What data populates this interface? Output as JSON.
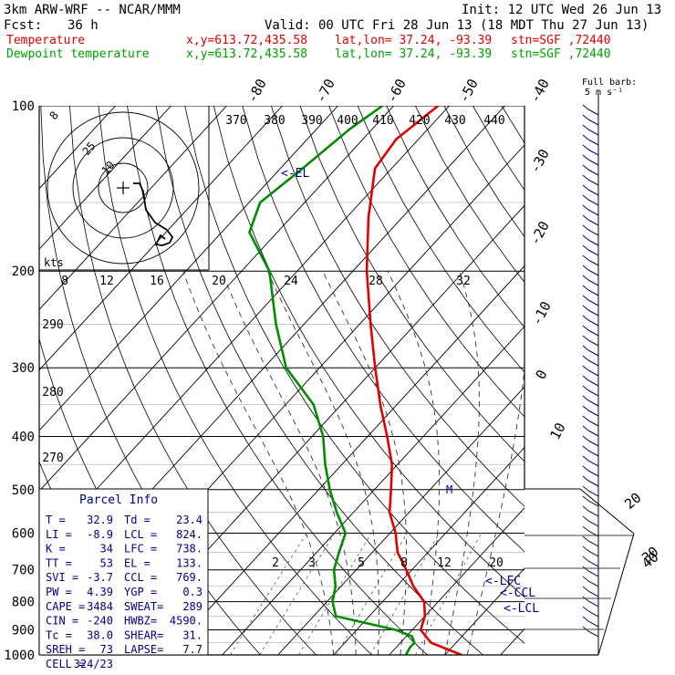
{
  "header": {
    "model": "3km ARW-WRF -- NCAR/MMM",
    "init": "Init: 12 UTC Wed 26 Jun 13",
    "fcst_label": "Fcst:",
    "fcst_value": "36 h",
    "valid": "Valid: 00 UTC Fri 28 Jun 13 (18 MDT Thu 27 Jun 13)",
    "series": [
      {
        "name": "Temperature",
        "xy": "x,y=613.72,435.58",
        "latlon": "lat,lon= 37.24, -93.39",
        "stn": "stn=SGF ,72440"
      },
      {
        "name": "Dewpoint temperature",
        "xy": "x,y=613.72,435.58",
        "latlon": "lat,lon= 37.24, -93.39",
        "stn": "stn=SGF ,72440"
      }
    ]
  },
  "colors": {
    "temperature": "#e00000",
    "dewpoint": "#008c00",
    "frame": "#000000",
    "label": "#00008b"
  },
  "wind_barb_caption": [
    "Full barb:",
    "5 m s⁻¹"
  ],
  "hodo_label": "kts",
  "hodo_rings": [
    "8",
    "25",
    "10"
  ],
  "parcel_info": {
    "title": "Parcel Info",
    "rows": [
      [
        "T  =",
        "32.9",
        "Td =",
        "23.4"
      ],
      [
        "LI =",
        "-8.9",
        "LCL =",
        "824."
      ],
      [
        "K  =",
        "34",
        "LFC =",
        "738."
      ],
      [
        "TT =",
        "53",
        "EL =",
        "133."
      ],
      [
        "SVI =",
        "-3.7",
        "CCL =",
        "769."
      ],
      [
        "PW =",
        "4.39",
        "YGP =",
        "0.3"
      ],
      [
        "CAPE =",
        "3484",
        "SWEAT=",
        "289"
      ],
      [
        "CIN =",
        "-240",
        "HWBZ=",
        "4590."
      ],
      [
        "Tc =",
        "38.0",
        "SHEAR=",
        "31."
      ],
      [
        "SREH =",
        "73",
        "LAPSE=",
        "7.7"
      ],
      [
        "CELL =",
        "324/23",
        "",
        ""
      ]
    ]
  },
  "chart_data": {
    "type": "line",
    "diagram": "skew-T log-p",
    "pressure_levels": [
      "100",
      "200",
      "300",
      "400",
      "500",
      "600",
      "700",
      "800",
      "900",
      "1000"
    ],
    "isotherm_labels": [
      "-80",
      "-70",
      "-60",
      "-50",
      "-40",
      "-30",
      "-20",
      "-10",
      "0",
      "10",
      "20",
      "30",
      "40"
    ],
    "theta_labels": [
      "370",
      "380",
      "390",
      "400",
      "410",
      "420",
      "430",
      "440"
    ],
    "theta_left_labels": [
      "290",
      "280",
      "270"
    ],
    "mixing_ratio_labels": [
      "8",
      "12",
      "16",
      "20",
      "24",
      "28",
      "32"
    ],
    "mixing_ratio_low_labels": [
      "2",
      "3",
      "5",
      "8",
      "12",
      "20"
    ],
    "parcel_markers": [
      "<-EL",
      "<-LFC",
      "<-CCL",
      "<-LCL"
    ],
    "extra_marker": "M",
    "series": [
      {
        "name": "Temperature",
        "points": [
          [
            1000,
            33
          ],
          [
            970,
            28.5
          ],
          [
            950,
            25.5
          ],
          [
            925,
            23.5
          ],
          [
            900,
            21.5
          ],
          [
            850,
            20
          ],
          [
            800,
            17.5
          ],
          [
            750,
            13
          ],
          [
            700,
            9
          ],
          [
            650,
            4.5
          ],
          [
            600,
            1
          ],
          [
            550,
            -3.5
          ],
          [
            500,
            -7
          ],
          [
            450,
            -11
          ],
          [
            400,
            -16.5
          ],
          [
            350,
            -23
          ],
          [
            300,
            -30
          ],
          [
            250,
            -38
          ],
          [
            200,
            -47.5
          ],
          [
            160,
            -56
          ],
          [
            130,
            -63
          ],
          [
            115,
            -64
          ],
          [
            100,
            -62
          ]
        ]
      },
      {
        "name": "Dewpoint temperature",
        "points": [
          [
            1000,
            23
          ],
          [
            970,
            22.5
          ],
          [
            950,
            22.5
          ],
          [
            925,
            21
          ],
          [
            900,
            17
          ],
          [
            850,
            4
          ],
          [
            800,
            1
          ],
          [
            750,
            -1
          ],
          [
            700,
            -4
          ],
          [
            650,
            -6
          ],
          [
            600,
            -8
          ],
          [
            550,
            -13
          ],
          [
            500,
            -18
          ],
          [
            450,
            -23
          ],
          [
            400,
            -28
          ],
          [
            350,
            -35
          ],
          [
            300,
            -46
          ],
          [
            250,
            -55
          ],
          [
            200,
            -65
          ],
          [
            170,
            -75
          ],
          [
            150,
            -78
          ],
          [
            130,
            -76
          ],
          [
            110,
            -74
          ],
          [
            100,
            -72
          ]
        ]
      }
    ]
  }
}
